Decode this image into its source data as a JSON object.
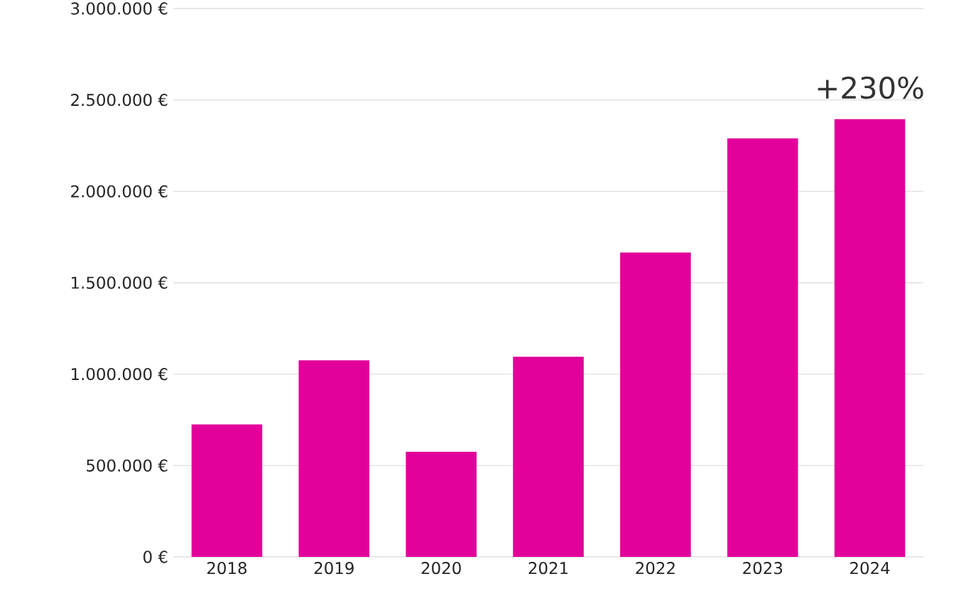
{
  "chart_data": {
    "type": "bar",
    "categories": [
      "2018",
      "2019",
      "2020",
      "2021",
      "2022",
      "2023",
      "2024"
    ],
    "values": [
      725000,
      1075000,
      575000,
      1095000,
      1665000,
      2290000,
      2395000
    ],
    "color": "#e2009a",
    "ylim": [
      0,
      3000000
    ],
    "yticks": [
      {
        "value": 0,
        "label": "0 €"
      },
      {
        "value": 500000,
        "label": "500.000 €"
      },
      {
        "value": 1000000,
        "label": "1.000.000 €"
      },
      {
        "value": 1500000,
        "label": "1.500.000 €"
      },
      {
        "value": 2000000,
        "label": "2.000.000 €"
      },
      {
        "value": 2500000,
        "label": "2.500.000 €"
      },
      {
        "value": 3000000,
        "label": "3.000.000 €"
      }
    ],
    "grid": "y",
    "annotations": [
      {
        "text": "+230%",
        "x": "2024",
        "y": 2395000
      }
    ]
  }
}
